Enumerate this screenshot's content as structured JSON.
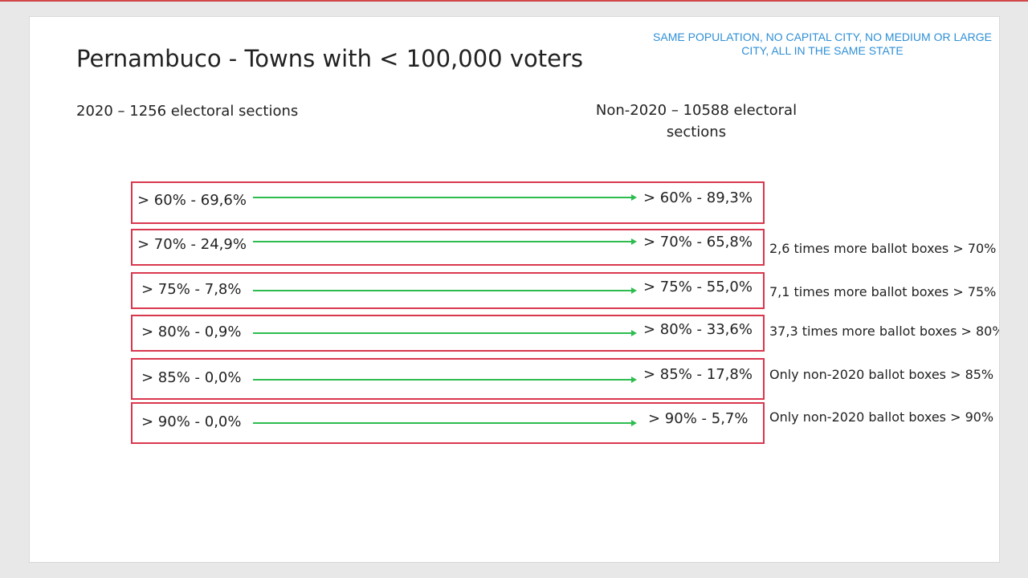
{
  "slide": {
    "title": "Pernambuco - Towns with < 100,000 voters",
    "note": "SAME POPULATION, NO CAPITAL CITY, NO MEDIUM OR LARGE CITY, ALL IN THE SAME STATE",
    "left_heading": "2020 – 1256 electoral sections",
    "right_heading": "Non-2020 – 10588 electoral sections",
    "rows": [
      {
        "left": "> 60% - 69,6%",
        "right": "> 60% - 89,3%",
        "note": ""
      },
      {
        "left": "> 70% - 24,9%",
        "right": "> 70% - 65,8%",
        "note": "2,6 times more ballot boxes > 70%"
      },
      {
        "left": "> 75% - 7,8%",
        "right": "> 75% - 55,0%",
        "note": "7,1 times more ballot boxes > 75%"
      },
      {
        "left": "> 80% - 0,9%",
        "right": "> 80% - 33,6%",
        "note": "37,3 times more ballot boxes > 80%"
      },
      {
        "left": "> 85% - 0,0%",
        "right": "> 85% - 17,8%",
        "note": "Only non-2020 ballot boxes > 85%"
      },
      {
        "left": "> 90% - 0,0%",
        "right": "> 90% - 5,7%",
        "note": "Only non-2020 ballot boxes > 90%"
      }
    ]
  },
  "colors": {
    "box_border": "#d9374e",
    "arrow": "#2dbd4f",
    "note_text": "#2f8fd6"
  }
}
